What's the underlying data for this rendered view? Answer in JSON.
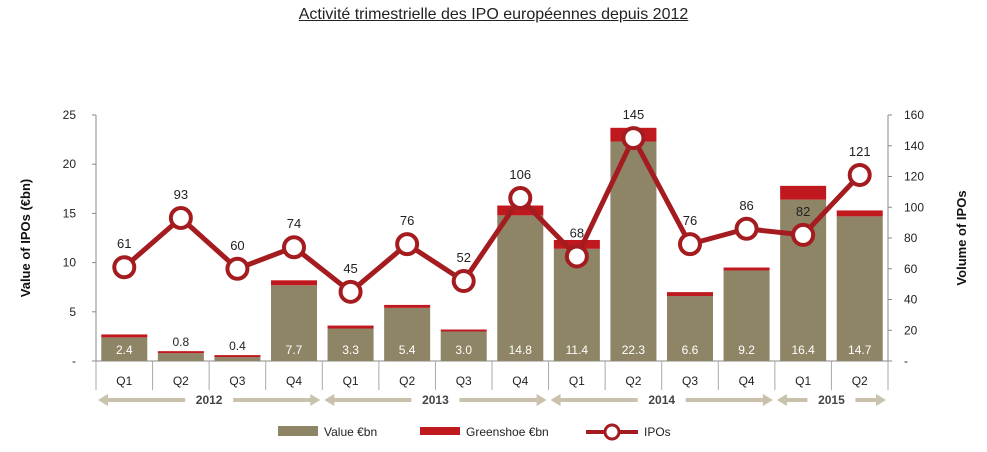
{
  "title": "Activité trimestrielle des IPO européennes depuis 2012",
  "colors": {
    "value": "#8e8466",
    "greenshoe": "#c0181f",
    "ipos": "#a41c1f",
    "year_arrow": "#c9c1ab"
  },
  "chart_data": {
    "type": "bar",
    "quarters": [
      "Q1",
      "Q2",
      "Q3",
      "Q4",
      "Q1",
      "Q2",
      "Q3",
      "Q4",
      "Q1",
      "Q2",
      "Q3",
      "Q4",
      "Q1",
      "Q2"
    ],
    "years": [
      {
        "label": "2012",
        "start": 0,
        "end": 3
      },
      {
        "label": "2013",
        "start": 4,
        "end": 7
      },
      {
        "label": "2014",
        "start": 8,
        "end": 11
      },
      {
        "label": "2015",
        "start": 12,
        "end": 13
      }
    ],
    "series": [
      {
        "name": "Value €bn",
        "type": "bar",
        "values": [
          2.4,
          0.8,
          0.4,
          7.7,
          3.3,
          5.4,
          3.0,
          14.8,
          11.4,
          22.3,
          6.6,
          9.2,
          16.4,
          14.7
        ],
        "labels": [
          "2.4",
          "0.8",
          "0.4",
          "7.7",
          "3.3",
          "5.4",
          "3.0",
          "14.8",
          "11.4",
          "22.3",
          "6.6",
          "9.2",
          "16.4",
          "14.7"
        ]
      },
      {
        "name": "Greenshoe €bn",
        "type": "bar-stacked",
        "values": [
          0.3,
          0.2,
          0.2,
          0.5,
          0.3,
          0.3,
          0.2,
          1.0,
          0.9,
          1.4,
          0.4,
          0.3,
          1.4,
          0.6
        ]
      },
      {
        "name": "IPOs",
        "type": "line",
        "values": [
          61,
          93,
          60,
          74,
          45,
          76,
          52,
          106,
          68,
          145,
          76,
          86,
          82,
          121
        ],
        "labels": [
          "61",
          "93",
          "60",
          "74",
          "45",
          "76",
          "52",
          "106",
          "68",
          "145",
          "76",
          "86",
          "82",
          "121"
        ]
      }
    ],
    "y_left": {
      "label": "Value of IPOs (€bn)",
      "range": [
        0,
        25
      ],
      "ticks": [
        "-",
        "5",
        "10",
        "15",
        "20",
        "25"
      ]
    },
    "y_right": {
      "label": "Volume of IPOs",
      "range": [
        0,
        160
      ],
      "ticks": [
        "-",
        "20",
        "40",
        "60",
        "80",
        "100",
        "120",
        "140",
        "160"
      ]
    },
    "legend": [
      "Value €bn",
      "Greenshoe €bn",
      "IPOs"
    ],
    "legend_position": "bottom"
  }
}
